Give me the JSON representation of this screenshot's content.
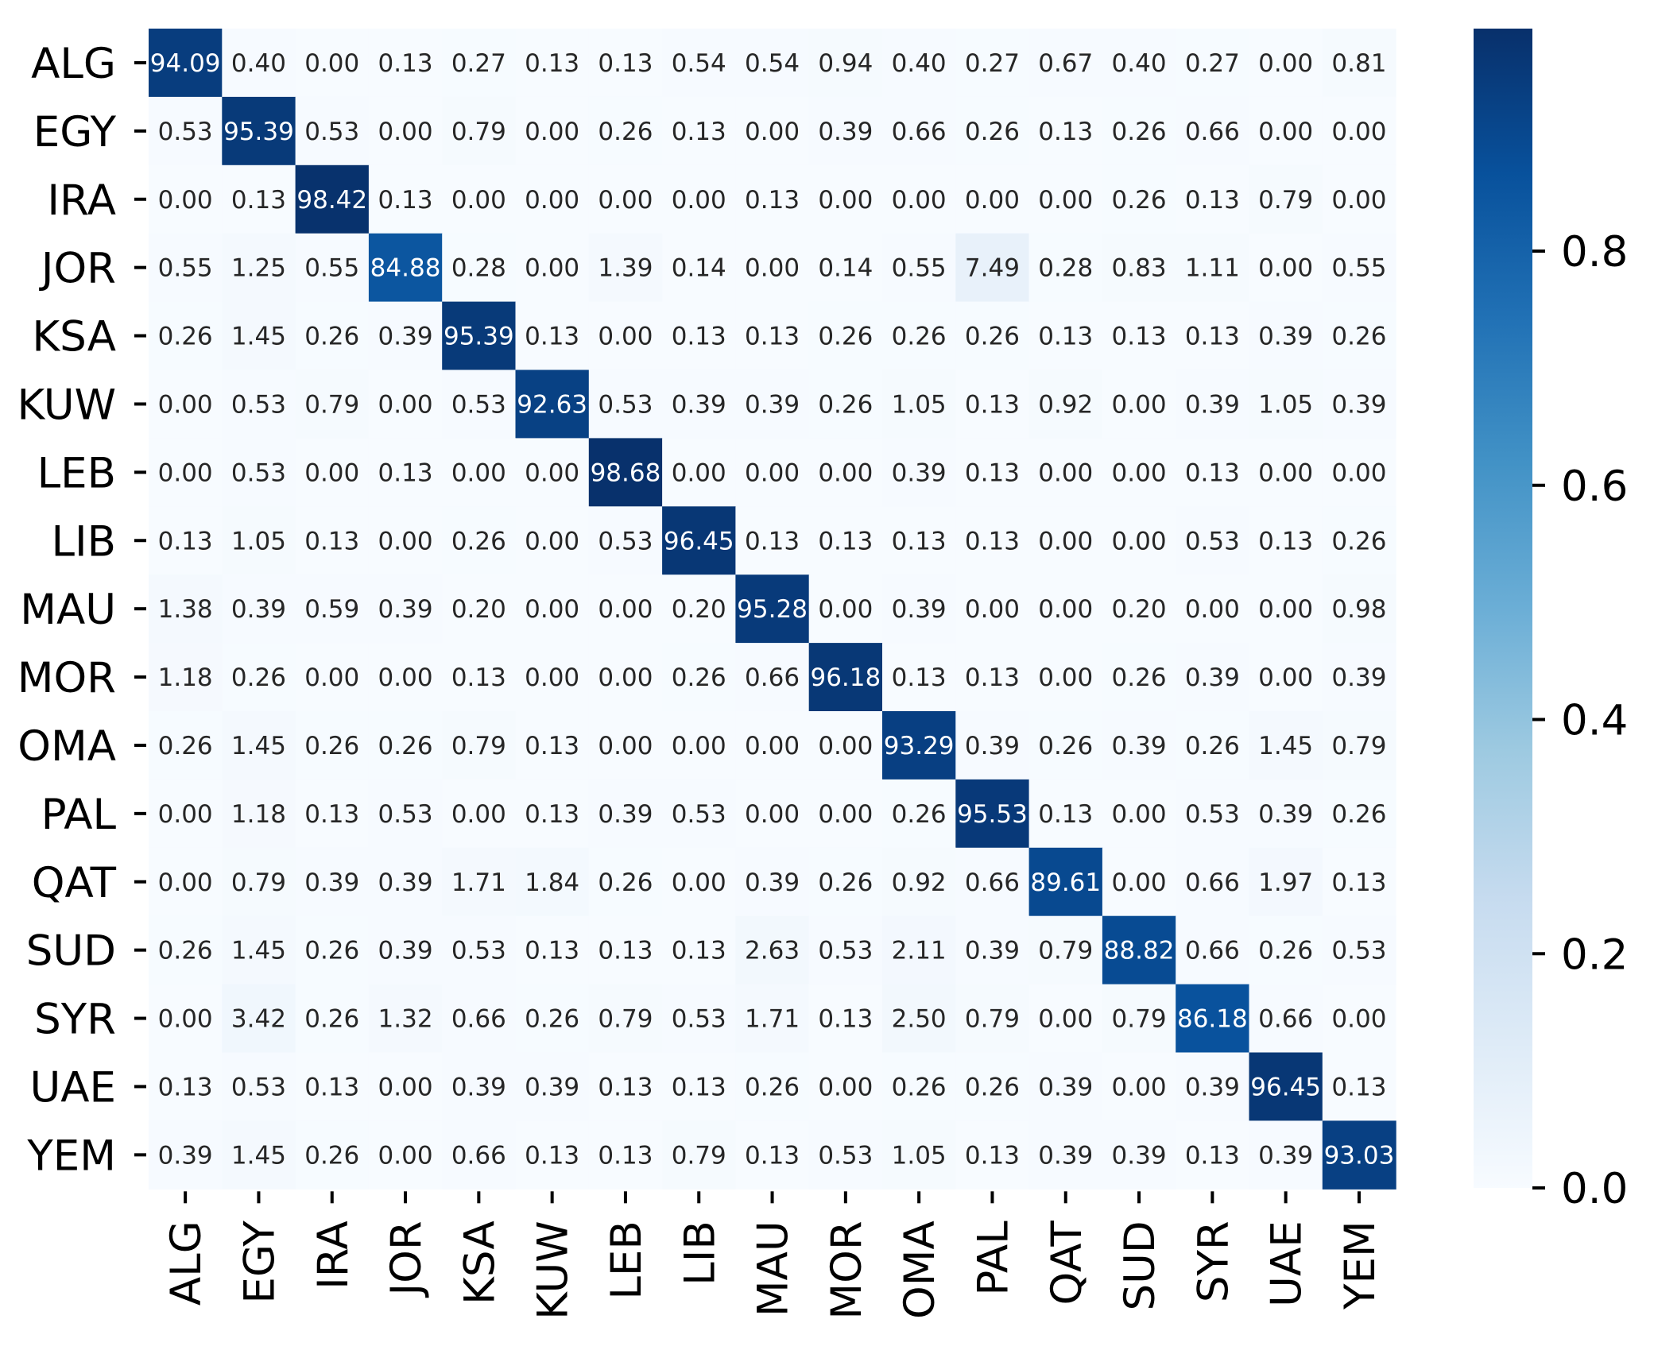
{
  "chart_data": {
    "type": "heatmap",
    "title": "",
    "xlabel": "",
    "ylabel": "",
    "row_labels": [
      "ALG",
      "EGY",
      "IRA",
      "JOR",
      "KSA",
      "KUW",
      "LEB",
      "LIB",
      "MAU",
      "MOR",
      "OMA",
      "PAL",
      "QAT",
      "SUD",
      "SYR",
      "UAE",
      "YEM"
    ],
    "col_labels": [
      "ALG",
      "EGY",
      "IRA",
      "JOR",
      "KSA",
      "KUW",
      "LEB",
      "LIB",
      "MAU",
      "MOR",
      "OMA",
      "PAL",
      "QAT",
      "SUD",
      "SYR",
      "UAE",
      "YEM"
    ],
    "values": [
      [
        "94.09",
        "0.40",
        "0.00",
        "0.13",
        "0.27",
        "0.13",
        "0.13",
        "0.54",
        "0.54",
        "0.94",
        "0.40",
        "0.27",
        "0.67",
        "0.40",
        "0.27",
        "0.00",
        "0.81"
      ],
      [
        "0.53",
        "95.39",
        "0.53",
        "0.00",
        "0.79",
        "0.00",
        "0.26",
        "0.13",
        "0.00",
        "0.39",
        "0.66",
        "0.26",
        "0.13",
        "0.26",
        "0.66",
        "0.00",
        "0.00"
      ],
      [
        "0.00",
        "0.13",
        "98.42",
        "0.13",
        "0.00",
        "0.00",
        "0.00",
        "0.00",
        "0.13",
        "0.00",
        "0.00",
        "0.00",
        "0.00",
        "0.26",
        "0.13",
        "0.79",
        "0.00"
      ],
      [
        "0.55",
        "1.25",
        "0.55",
        "84.88",
        "0.28",
        "0.00",
        "1.39",
        "0.14",
        "0.00",
        "0.14",
        "0.55",
        "7.49",
        "0.28",
        "0.83",
        "1.11",
        "0.00",
        "0.55"
      ],
      [
        "0.26",
        "1.45",
        "0.26",
        "0.39",
        "95.39",
        "0.13",
        "0.00",
        "0.13",
        "0.13",
        "0.26",
        "0.26",
        "0.26",
        "0.13",
        "0.13",
        "0.13",
        "0.39",
        "0.26"
      ],
      [
        "0.00",
        "0.53",
        "0.79",
        "0.00",
        "0.53",
        "92.63",
        "0.53",
        "0.39",
        "0.39",
        "0.26",
        "1.05",
        "0.13",
        "0.92",
        "0.00",
        "0.39",
        "1.05",
        "0.39"
      ],
      [
        "0.00",
        "0.53",
        "0.00",
        "0.13",
        "0.00",
        "0.00",
        "98.68",
        "0.00",
        "0.00",
        "0.00",
        "0.39",
        "0.13",
        "0.00",
        "0.00",
        "0.13",
        "0.00",
        "0.00"
      ],
      [
        "0.13",
        "1.05",
        "0.13",
        "0.00",
        "0.26",
        "0.00",
        "0.53",
        "96.45",
        "0.13",
        "0.13",
        "0.13",
        "0.13",
        "0.00",
        "0.00",
        "0.53",
        "0.13",
        "0.26"
      ],
      [
        "1.38",
        "0.39",
        "0.59",
        "0.39",
        "0.20",
        "0.00",
        "0.00",
        "0.20",
        "95.28",
        "0.00",
        "0.39",
        "0.00",
        "0.00",
        "0.20",
        "0.00",
        "0.00",
        "0.98"
      ],
      [
        "1.18",
        "0.26",
        "0.00",
        "0.00",
        "0.13",
        "0.00",
        "0.00",
        "0.26",
        "0.66",
        "96.18",
        "0.13",
        "0.13",
        "0.00",
        "0.26",
        "0.39",
        "0.00",
        "0.39"
      ],
      [
        "0.26",
        "1.45",
        "0.26",
        "0.26",
        "0.79",
        "0.13",
        "0.00",
        "0.00",
        "0.00",
        "0.00",
        "93.29",
        "0.39",
        "0.26",
        "0.39",
        "0.26",
        "1.45",
        "0.79"
      ],
      [
        "0.00",
        "1.18",
        "0.13",
        "0.53",
        "0.00",
        "0.13",
        "0.39",
        "0.53",
        "0.00",
        "0.00",
        "0.26",
        "95.53",
        "0.13",
        "0.00",
        "0.53",
        "0.39",
        "0.26"
      ],
      [
        "0.00",
        "0.79",
        "0.39",
        "0.39",
        "1.71",
        "1.84",
        "0.26",
        "0.00",
        "0.39",
        "0.26",
        "0.92",
        "0.66",
        "89.61",
        "0.00",
        "0.66",
        "1.97",
        "0.13"
      ],
      [
        "0.26",
        "1.45",
        "0.26",
        "0.39",
        "0.53",
        "0.13",
        "0.13",
        "0.13",
        "2.63",
        "0.53",
        "2.11",
        "0.39",
        "0.79",
        "88.82",
        "0.66",
        "0.26",
        "0.53"
      ],
      [
        "0.00",
        "3.42",
        "0.26",
        "1.32",
        "0.66",
        "0.26",
        "0.79",
        "0.53",
        "1.71",
        "0.13",
        "2.50",
        "0.79",
        "0.00",
        "0.79",
        "86.18",
        "0.66",
        "0.00"
      ],
      [
        "0.13",
        "0.53",
        "0.13",
        "0.00",
        "0.39",
        "0.39",
        "0.13",
        "0.13",
        "0.26",
        "0.00",
        "0.26",
        "0.26",
        "0.39",
        "0.00",
        "0.39",
        "96.45",
        "0.13"
      ],
      [
        "0.39",
        "1.45",
        "0.26",
        "0.00",
        "0.66",
        "0.13",
        "0.13",
        "0.79",
        "0.13",
        "0.53",
        "1.05",
        "0.13",
        "0.39",
        "0.39",
        "0.13",
        "0.39",
        "93.03"
      ]
    ],
    "colormap": "Blues",
    "colorbar": {
      "ticks": [
        "0.0",
        "0.2",
        "0.4",
        "0.6",
        "0.8"
      ],
      "range": [
        0.0,
        0.99
      ]
    },
    "grid": false,
    "legend": "colorbar-right"
  }
}
